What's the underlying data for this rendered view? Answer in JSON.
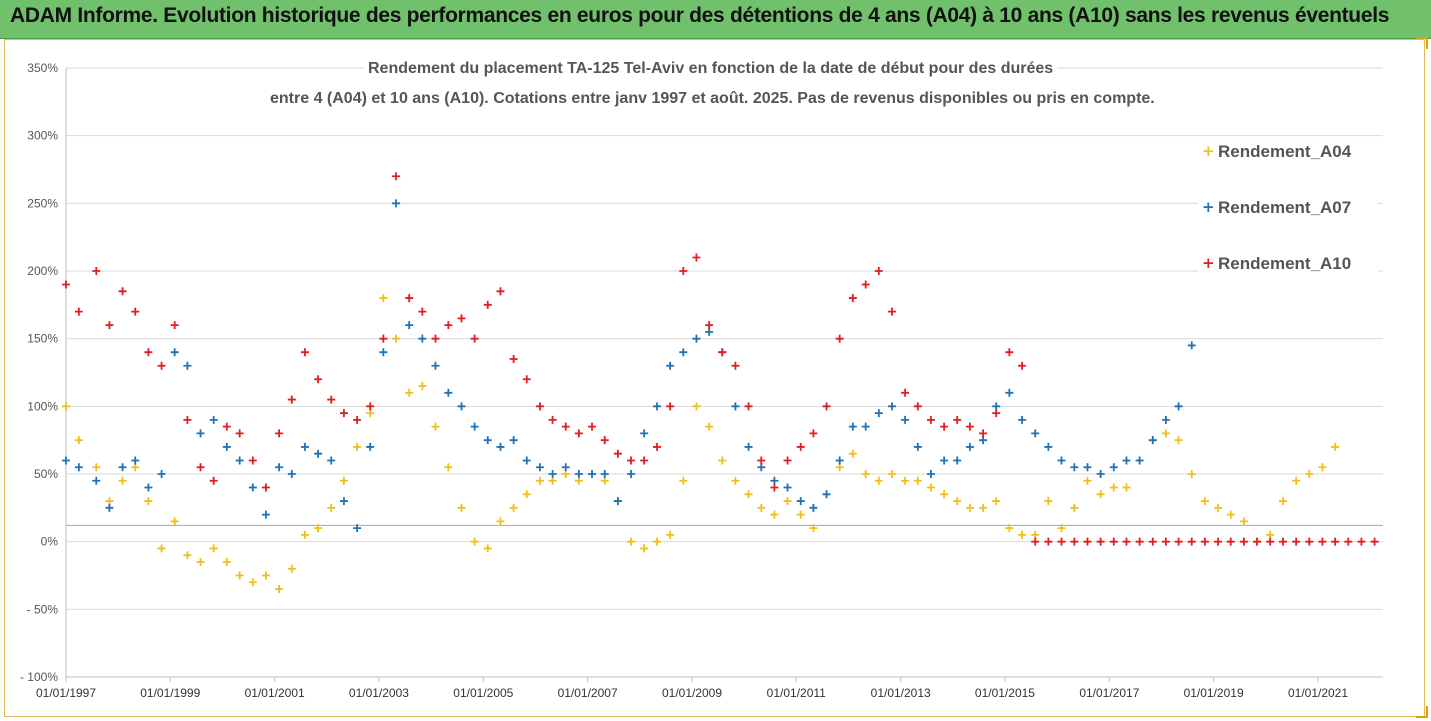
{
  "banner": {
    "title": "ADAM Informe. Evolution historique des performances en euros pour des détentions de 4 ans (A04) à 10 ans (A10) sans les revenus éventuels"
  },
  "colors": {
    "banner": "#70c06c",
    "A04": "#f2be1a",
    "A07": "#1f72b8",
    "A10": "#e31d1d",
    "grid": "#d9d9d9"
  },
  "chart_data": {
    "type": "scatter",
    "title_line1": "Rendement du placement TA-125 Tel-Aviv en fonction de la date de début pour des durées",
    "title_line2": "entre 4 (A04) et 10 ans (A10). Cotations entre janv 1997 et août. 2025. Pas de revenus disponibles ou pris en compte.",
    "xlabel": "",
    "ylabel": "",
    "x_range": [
      "1997-01-01",
      "2022-04-01"
    ],
    "ylim": [
      -100,
      350
    ],
    "y_tick_values": [
      -100,
      -50,
      0,
      50,
      100,
      150,
      200,
      250,
      300,
      350
    ],
    "y_tick_labels": [
      "- 100%",
      "- 50%",
      "0%",
      "50%",
      "100%",
      "150%",
      "200%",
      "250%",
      "300%",
      "350%"
    ],
    "x_tick_values": [
      "1997-01-01",
      "1999-01-01",
      "2001-01-01",
      "2003-01-01",
      "2005-01-01",
      "2007-01-01",
      "2009-01-01",
      "2011-01-01",
      "2013-01-01",
      "2015-01-01",
      "2017-01-01",
      "2019-01-01",
      "2021-01-01"
    ],
    "x_tick_labels": [
      "01/01/1997",
      "01/01/1999",
      "01/01/2001",
      "01/01/2003",
      "01/01/2005",
      "01/01/2007",
      "01/01/2009",
      "01/01/2011",
      "01/01/2013",
      "01/01/2015",
      "01/01/2017",
      "01/01/2019",
      "01/01/2021"
    ],
    "grid": true,
    "legend_position": "top-right",
    "marker": "+",
    "series": [
      {
        "name": "Rendement_A04",
        "color": "#f2be1a",
        "x": [
          "1997-01-01",
          "1997-04-01",
          "1997-08-01",
          "1997-11-01",
          "1998-02-01",
          "1998-05-01",
          "1998-08-01",
          "1998-11-01",
          "1999-02-01",
          "1999-05-01",
          "1999-08-01",
          "1999-11-01",
          "2000-02-01",
          "2000-05-01",
          "2000-08-01",
          "2000-11-01",
          "2001-02-01",
          "2001-05-01",
          "2001-08-01",
          "2001-11-01",
          "2002-02-01",
          "2002-05-01",
          "2002-08-01",
          "2002-11-01",
          "2003-02-01",
          "2003-05-01",
          "2003-08-01",
          "2003-11-01",
          "2004-02-01",
          "2004-05-01",
          "2004-08-01",
          "2004-11-01",
          "2005-02-01",
          "2005-05-01",
          "2005-08-01",
          "2005-11-01",
          "2006-02-01",
          "2006-05-01",
          "2006-08-01",
          "2006-11-01",
          "2007-02-01",
          "2007-05-01",
          "2007-08-01",
          "2007-11-01",
          "2008-02-01",
          "2008-05-01",
          "2008-08-01",
          "2008-11-01",
          "2009-02-01",
          "2009-05-01",
          "2009-08-01",
          "2009-11-01",
          "2010-02-01",
          "2010-05-01",
          "2010-08-01",
          "2010-11-01",
          "2011-02-01",
          "2011-05-01",
          "2011-08-01",
          "2011-11-01",
          "2012-02-01",
          "2012-05-01",
          "2012-08-01",
          "2012-11-01",
          "2013-02-01",
          "2013-05-01",
          "2013-08-01",
          "2013-11-01",
          "2014-02-01",
          "2014-05-01",
          "2014-08-01",
          "2014-11-01",
          "2015-02-01",
          "2015-05-01",
          "2015-08-01",
          "2015-11-01",
          "2016-02-01",
          "2016-05-01",
          "2016-08-01",
          "2016-11-01",
          "2017-02-01",
          "2017-05-01",
          "2017-08-01",
          "2017-11-01",
          "2018-02-01",
          "2018-05-01",
          "2018-08-01",
          "2018-11-01",
          "2019-02-01",
          "2019-05-01",
          "2019-08-01",
          "2019-11-01",
          "2020-02-01",
          "2020-05-01",
          "2020-08-01",
          "2020-11-01",
          "2021-02-01",
          "2021-05-01"
        ],
        "y": [
          100,
          75,
          55,
          30,
          45,
          55,
          30,
          -5,
          15,
          -10,
          -15,
          -5,
          -15,
          -25,
          -30,
          -25,
          -35,
          -20,
          5,
          10,
          25,
          45,
          70,
          95,
          180,
          150,
          110,
          115,
          85,
          55,
          25,
          0,
          -5,
          15,
          25,
          35,
          45,
          45,
          50,
          45,
          50,
          45,
          30,
          0,
          -5,
          0,
          5,
          45,
          100,
          85,
          60,
          45,
          35,
          25,
          20,
          30,
          20,
          10,
          35,
          55,
          65,
          50,
          45,
          50,
          45,
          45,
          40,
          35,
          30,
          25,
          25,
          30,
          10,
          5,
          5,
          30,
          10,
          25,
          45,
          35,
          40,
          40,
          60,
          75,
          80,
          75,
          50,
          30,
          25,
          20,
          15,
          0,
          5,
          30,
          45,
          50,
          55,
          70
        ]
      },
      {
        "name": "Rendement_A07",
        "color": "#1f72b8",
        "x": [
          "1997-01-01",
          "1997-04-01",
          "1997-08-01",
          "1997-11-01",
          "1998-02-01",
          "1998-05-01",
          "1998-08-01",
          "1998-11-01",
          "1999-02-01",
          "1999-05-01",
          "1999-08-01",
          "1999-11-01",
          "2000-02-01",
          "2000-05-01",
          "2000-08-01",
          "2000-11-01",
          "2001-02-01",
          "2001-05-01",
          "2001-08-01",
          "2001-11-01",
          "2002-02-01",
          "2002-05-01",
          "2002-08-01",
          "2002-11-01",
          "2003-02-01",
          "2003-05-01",
          "2003-08-01",
          "2003-11-01",
          "2004-02-01",
          "2004-05-01",
          "2004-08-01",
          "2004-11-01",
          "2005-02-01",
          "2005-05-01",
          "2005-08-01",
          "2005-11-01",
          "2006-02-01",
          "2006-05-01",
          "2006-08-01",
          "2006-11-01",
          "2007-02-01",
          "2007-05-01",
          "2007-08-01",
          "2007-11-01",
          "2008-02-01",
          "2008-05-01",
          "2008-08-01",
          "2008-11-01",
          "2009-02-01",
          "2009-05-01",
          "2009-08-01",
          "2009-11-01",
          "2010-02-01",
          "2010-05-01",
          "2010-08-01",
          "2010-11-01",
          "2011-02-01",
          "2011-05-01",
          "2011-08-01",
          "2011-11-01",
          "2012-02-01",
          "2012-05-01",
          "2012-08-01",
          "2012-11-01",
          "2013-02-01",
          "2013-05-01",
          "2013-08-01",
          "2013-11-01",
          "2014-02-01",
          "2014-05-01",
          "2014-08-01",
          "2014-11-01",
          "2015-02-01",
          "2015-05-01",
          "2015-08-01",
          "2015-11-01",
          "2016-02-01",
          "2016-05-01",
          "2016-08-01",
          "2016-11-01",
          "2017-02-01",
          "2017-05-01",
          "2017-08-01",
          "2017-11-01",
          "2018-02-01",
          "2018-05-01",
          "2018-08-01"
        ],
        "y": [
          60,
          55,
          45,
          25,
          55,
          60,
          40,
          50,
          140,
          130,
          80,
          90,
          70,
          60,
          40,
          20,
          55,
          50,
          70,
          65,
          60,
          30,
          10,
          70,
          140,
          250,
          160,
          150,
          130,
          110,
          100,
          85,
          75,
          70,
          75,
          60,
          55,
          50,
          55,
          50,
          50,
          50,
          30,
          50,
          80,
          100,
          130,
          140,
          150,
          155,
          140,
          100,
          70,
          55,
          45,
          40,
          30,
          25,
          35,
          60,
          85,
          85,
          95,
          100,
          90,
          70,
          50,
          60,
          60,
          70,
          75,
          100,
          110,
          90,
          80,
          70,
          60,
          55,
          55,
          50,
          55,
          60,
          60,
          75,
          90,
          100,
          145
        ]
      },
      {
        "name": "Rendement_A10",
        "color": "#e31d1d",
        "x": [
          "1997-01-01",
          "1997-04-01",
          "1997-08-01",
          "1997-11-01",
          "1998-02-01",
          "1998-05-01",
          "1998-08-01",
          "1998-11-01",
          "1999-02-01",
          "1999-05-01",
          "1999-08-01",
          "1999-11-01",
          "2000-02-01",
          "2000-05-01",
          "2000-08-01",
          "2000-11-01",
          "2001-02-01",
          "2001-05-01",
          "2001-08-01",
          "2001-11-01",
          "2002-02-01",
          "2002-05-01",
          "2002-08-01",
          "2002-11-01",
          "2003-02-01",
          "2003-05-01",
          "2003-08-01",
          "2003-11-01",
          "2004-02-01",
          "2004-05-01",
          "2004-08-01",
          "2004-11-01",
          "2005-02-01",
          "2005-05-01",
          "2005-08-01",
          "2005-11-01",
          "2006-02-01",
          "2006-05-01",
          "2006-08-01",
          "2006-11-01",
          "2007-02-01",
          "2007-05-01",
          "2007-08-01",
          "2007-11-01",
          "2008-02-01",
          "2008-05-01",
          "2008-08-01",
          "2008-11-01",
          "2009-02-01",
          "2009-05-01",
          "2009-08-01",
          "2009-11-01",
          "2010-02-01",
          "2010-05-01",
          "2010-08-01",
          "2010-11-01",
          "2011-02-01",
          "2011-05-01",
          "2011-08-01",
          "2011-11-01",
          "2012-02-01",
          "2012-05-01",
          "2012-08-01",
          "2012-11-01",
          "2013-02-01",
          "2013-05-01",
          "2013-08-01",
          "2013-11-01",
          "2014-02-01",
          "2014-05-01",
          "2014-08-01",
          "2014-11-01",
          "2015-02-01",
          "2015-05-01",
          "2015-08-01",
          "2015-11-01",
          "2016-02-01",
          "2016-05-01",
          "2016-08-01",
          "2016-11-01",
          "2017-02-01",
          "2017-05-01",
          "2017-08-01",
          "2017-11-01",
          "2018-02-01",
          "2018-05-01",
          "2018-08-01",
          "2018-11-01",
          "2019-02-01",
          "2019-05-01",
          "2019-08-01",
          "2019-11-01",
          "2020-02-01",
          "2020-05-01",
          "2020-08-01",
          "2020-11-01",
          "2021-02-01",
          "2021-05-01",
          "2021-08-01",
          "2021-11-01",
          "2022-02-01"
        ],
        "y": [
          190,
          170,
          200,
          160,
          185,
          170,
          140,
          130,
          160,
          90,
          55,
          45,
          85,
          80,
          60,
          40,
          80,
          105,
          140,
          120,
          105,
          95,
          90,
          100,
          150,
          270,
          180,
          170,
          150,
          160,
          165,
          150,
          175,
          185,
          135,
          120,
          100,
          90,
          85,
          80,
          85,
          75,
          65,
          60,
          60,
          70,
          100,
          200,
          210,
          160,
          140,
          130,
          100,
          60,
          40,
          60,
          70,
          80,
          100,
          150,
          180,
          190,
          200,
          170,
          110,
          100,
          90,
          85,
          90,
          85,
          80,
          95,
          140,
          130,
          0,
          0,
          0,
          0,
          0,
          0,
          0,
          0,
          0,
          0,
          0,
          0,
          0,
          0,
          0,
          0,
          0,
          0,
          0,
          0,
          0,
          0,
          0,
          0,
          0,
          0,
          0
        ]
      }
    ]
  }
}
